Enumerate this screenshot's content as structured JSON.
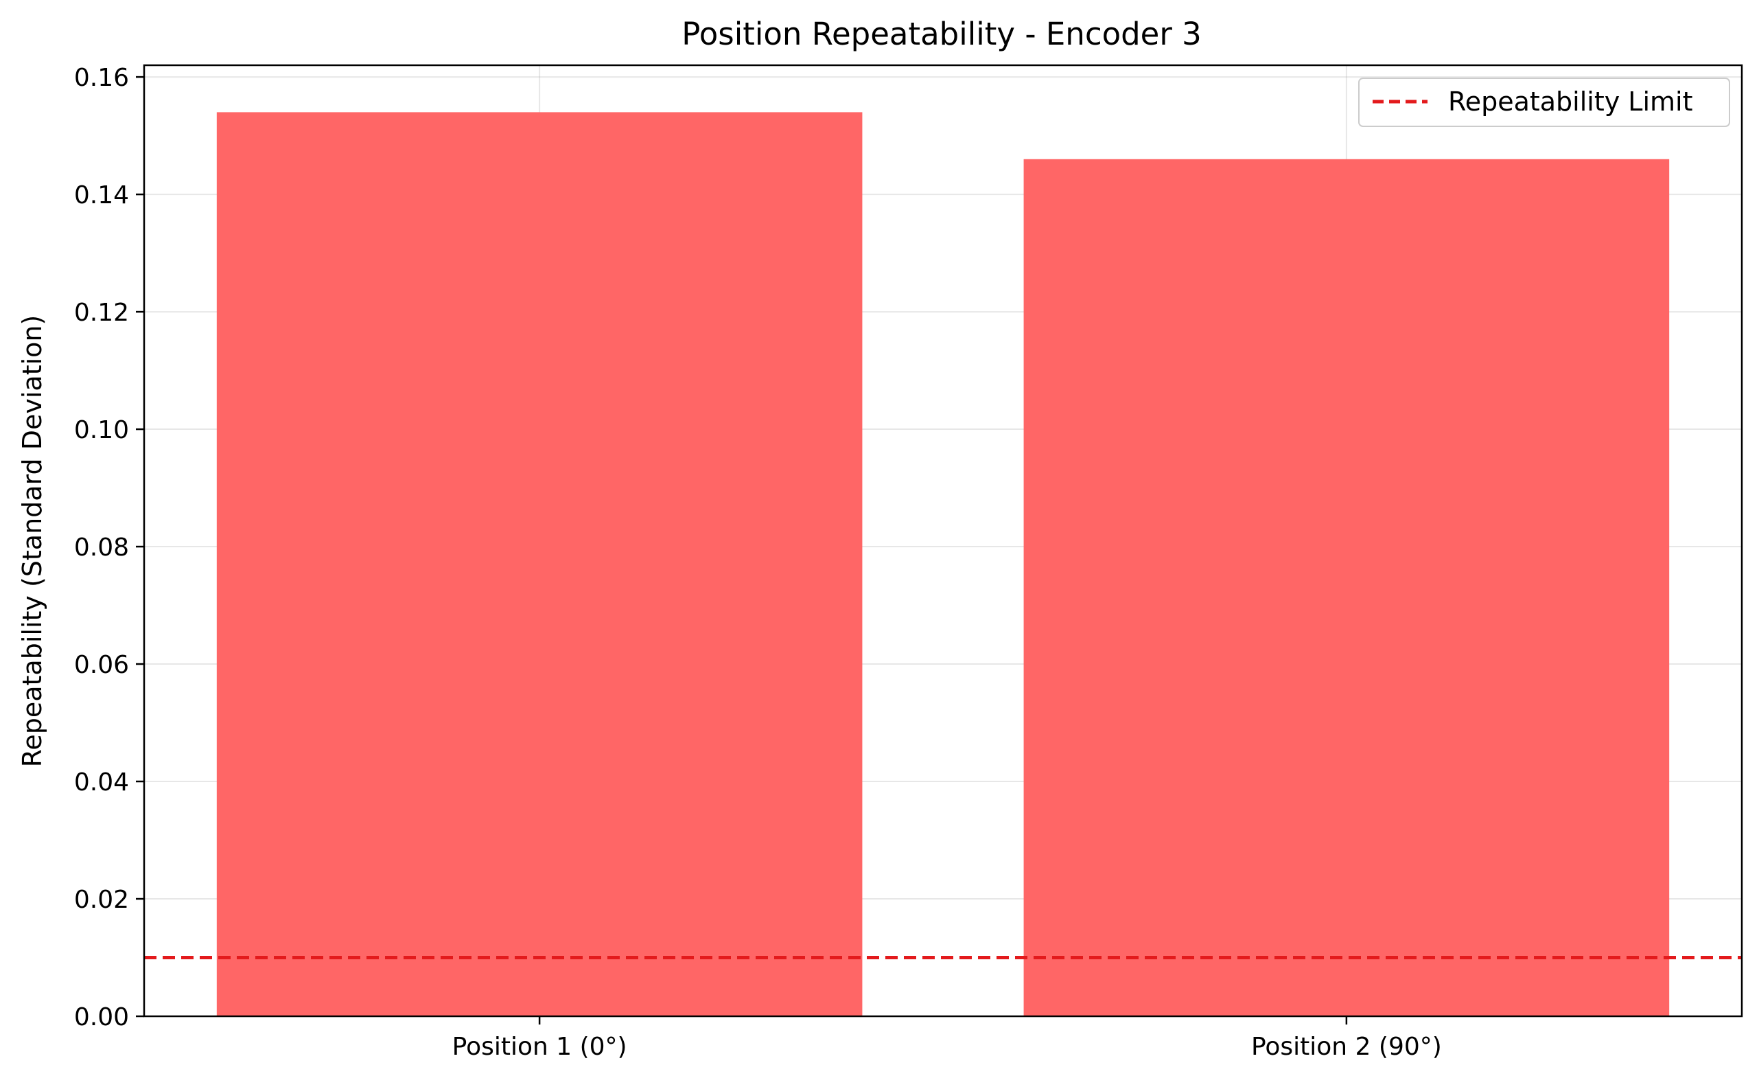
{
  "chart_data": {
    "type": "bar",
    "title": "Position Repeatability - Encoder 3",
    "xlabel": "",
    "ylabel": "Repeatability (Standard Deviation)",
    "categories": [
      "Position 1 (0°)",
      "Position 2 (90°)"
    ],
    "values": [
      0.154,
      0.146
    ],
    "bar_color": "#ff6666",
    "ylim": [
      0,
      0.162
    ],
    "yticks": [
      0.0,
      0.02,
      0.04,
      0.06,
      0.08,
      0.1,
      0.12,
      0.14,
      0.16
    ],
    "ytick_labels": [
      "0.00",
      "0.02",
      "0.04",
      "0.06",
      "0.08",
      "0.10",
      "0.12",
      "0.14",
      "0.16"
    ],
    "grid": true,
    "reference_line": {
      "label": "Repeatability Limit",
      "value": 0.01,
      "color": "#e31a1c",
      "style": "dashed"
    },
    "legend": {
      "placement": "top-right",
      "entries": [
        "Repeatability Limit"
      ]
    }
  }
}
